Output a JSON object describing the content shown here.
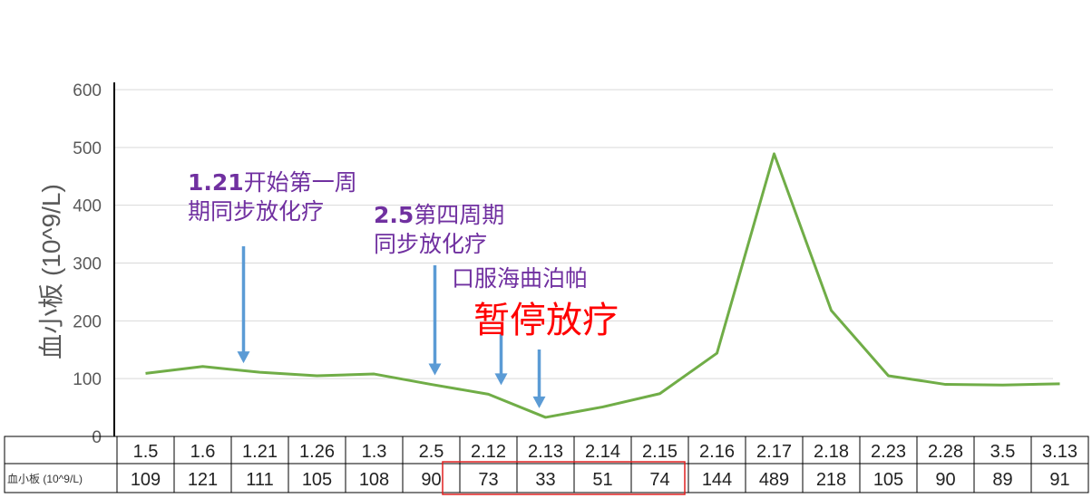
{
  "chart_data": {
    "type": "line",
    "ylabel": "血小板 (10^9/L)",
    "ylim": [
      0,
      600
    ],
    "yticks": [
      0,
      100,
      200,
      300,
      400,
      500,
      600
    ],
    "grid": true,
    "line_color": "#70ad47",
    "series": [
      {
        "name": "血小板 (10^9/L)",
        "x": [
          "1.5",
          "1.6",
          "1.21",
          "1.26",
          "1.3",
          "2.5",
          "2.12",
          "2.13",
          "2.14",
          "2.15",
          "2.16",
          "2.17",
          "2.18",
          "2.23",
          "2.28",
          "3.5",
          "3.13"
        ],
        "values": [
          109,
          121,
          111,
          105,
          108,
          90,
          73,
          33,
          51,
          74,
          144,
          489,
          218,
          105,
          90,
          89,
          91
        ]
      }
    ],
    "table": {
      "row_label": "血小板 (10^9/L)",
      "highlight": [
        "2.12",
        "2.13",
        "2.14",
        "2.15"
      ],
      "highlight_color": "#e02020"
    },
    "annotations": [
      {
        "id": "a1",
        "lines": [
          {
            "bold": "1.21",
            "text": "开始第一周"
          },
          {
            "bold": "",
            "text": "期同步放化疗"
          }
        ],
        "color": "#7030a0",
        "at": "1.21"
      },
      {
        "id": "a2",
        "lines": [
          {
            "bold": "2.5",
            "text": "第四周期"
          },
          {
            "bold": "",
            "text": "同步放化疗"
          }
        ],
        "color": "#7030a0",
        "at": "2.5"
      },
      {
        "id": "a3",
        "lines": [
          {
            "bold": "",
            "text": "口服海曲泊帕"
          }
        ],
        "color": "#7030a0",
        "at": "2.12"
      },
      {
        "id": "a4",
        "lines": [
          {
            "bold": "",
            "text": "暂停放疗"
          }
        ],
        "color": "#ff0000",
        "at": "2.13"
      }
    ],
    "arrow_color": "#5b9bd5"
  }
}
